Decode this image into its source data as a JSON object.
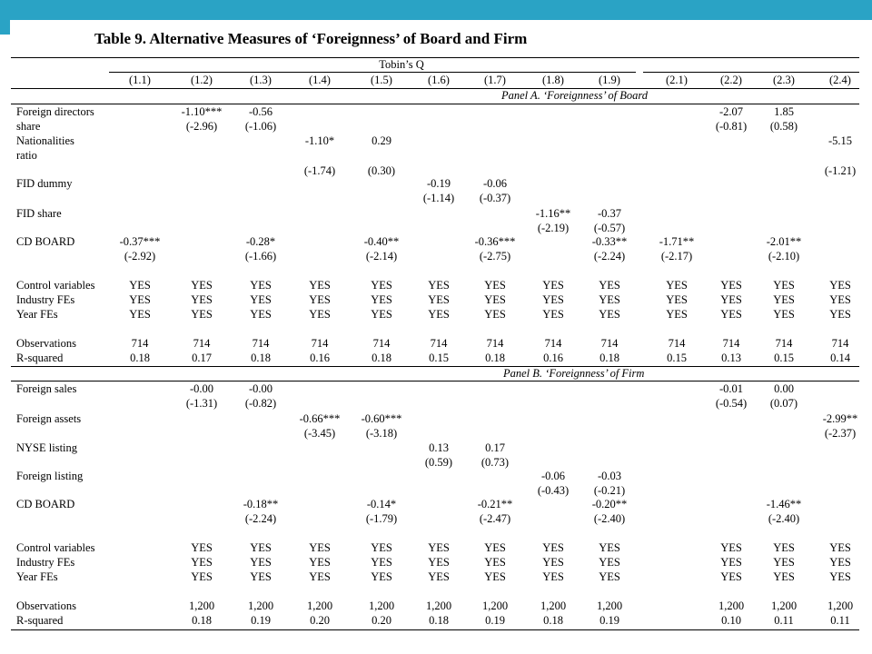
{
  "title": "Table 9. Alternative Measures of ‘Foreignness’ of Board and Firm",
  "dependent_var": "Tobin’s Q",
  "columns": [
    "(1.1)",
    "(1.2)",
    "(1.3)",
    "(1.4)",
    "(1.5)",
    "(1.6)",
    "(1.7)",
    "(1.8)",
    "(1.9)",
    "(2.1)",
    "(2.2)",
    "(2.3)",
    "(2.4)"
  ],
  "panels": [
    {
      "title": "Panel A. ‘Foreignness’ of Board",
      "vars": [
        {
          "label": [
            "Foreign directors",
            "share"
          ],
          "cells": [
            [
              "",
              ""
            ],
            [
              "-1.10***",
              "(-2.96)"
            ],
            [
              "-0.56",
              "(-1.06)"
            ],
            [
              "",
              ""
            ],
            [
              "",
              ""
            ],
            [
              "",
              ""
            ],
            [
              "",
              ""
            ],
            [
              "",
              ""
            ],
            [
              "",
              ""
            ],
            [
              "",
              ""
            ],
            [
              "-2.07",
              "(-0.81)"
            ],
            [
              "1.85",
              "(0.58)"
            ],
            [
              "",
              ""
            ]
          ]
        },
        {
          "label": [
            "Nationalities",
            "ratio"
          ],
          "cells": [
            [
              "",
              ""
            ],
            [
              "",
              ""
            ],
            [
              "",
              ""
            ],
            [
              "-1.10*",
              "(-1.74)"
            ],
            [
              "0.29",
              "(0.30)"
            ],
            [
              "",
              ""
            ],
            [
              "",
              ""
            ],
            [
              "",
              ""
            ],
            [
              "",
              ""
            ],
            [
              "",
              ""
            ],
            [
              "",
              ""
            ],
            [
              "",
              ""
            ],
            [
              "-5.15",
              "(-1.21)"
            ]
          ]
        },
        {
          "label": [
            "FID dummy"
          ],
          "cells": [
            [
              "",
              ""
            ],
            [
              "",
              ""
            ],
            [
              "",
              ""
            ],
            [
              "",
              ""
            ],
            [
              "",
              ""
            ],
            [
              "-0.19",
              "(-1.14)"
            ],
            [
              "-0.06",
              "(-0.37)"
            ],
            [
              "",
              ""
            ],
            [
              "",
              ""
            ],
            [
              "",
              ""
            ],
            [
              "",
              ""
            ],
            [
              "",
              ""
            ],
            [
              "",
              ""
            ]
          ]
        },
        {
          "label": [
            "FID share"
          ],
          "cells": [
            [
              "",
              ""
            ],
            [
              "",
              ""
            ],
            [
              "",
              ""
            ],
            [
              "",
              ""
            ],
            [
              "",
              ""
            ],
            [
              "",
              ""
            ],
            [
              "",
              ""
            ],
            [
              "-1.16**",
              "(-2.19)"
            ],
            [
              "-0.37",
              "(-0.57)"
            ],
            [
              "",
              ""
            ],
            [
              "",
              ""
            ],
            [
              "",
              ""
            ],
            [
              "",
              ""
            ]
          ]
        },
        {
          "label": [
            "CD BOARD"
          ],
          "cells": [
            [
              "-0.37***",
              "(-2.92)"
            ],
            [
              "",
              ""
            ],
            [
              "-0.28*",
              "(-1.66)"
            ],
            [
              "",
              ""
            ],
            [
              "-0.40**",
              "(-2.14)"
            ],
            [
              "",
              ""
            ],
            [
              "-0.36***",
              "(-2.75)"
            ],
            [
              "",
              ""
            ],
            [
              "-0.33**",
              "(-2.24)"
            ],
            [
              "-1.71**",
              "(-2.17)"
            ],
            [
              "",
              ""
            ],
            [
              "-2.01**",
              "(-2.10)"
            ],
            [
              "",
              ""
            ]
          ]
        }
      ],
      "controls": {
        "labels": [
          "Control variables",
          "Industry FEs",
          "Year FEs"
        ],
        "values": [
          "YES",
          "YES",
          "YES",
          "YES",
          "YES",
          "YES",
          "YES",
          "YES",
          "YES",
          "YES",
          "YES",
          "YES",
          "YES"
        ]
      },
      "stats": {
        "labels": [
          "Observations",
          "R-squared"
        ],
        "obs": [
          "714",
          "714",
          "714",
          "714",
          "714",
          "714",
          "714",
          "714",
          "714",
          "714",
          "714",
          "714",
          "714"
        ],
        "r2": [
          "0.18",
          "0.17",
          "0.18",
          "0.16",
          "0.18",
          "0.15",
          "0.18",
          "0.16",
          "0.18",
          "0.15",
          "0.13",
          "0.15",
          "0.14"
        ]
      }
    },
    {
      "title": "Panel B. ‘Foreignness’ of Firm",
      "vars": [
        {
          "label": [
            "Foreign sales"
          ],
          "cells": [
            [
              "",
              ""
            ],
            [
              "-0.00",
              "(-1.31)"
            ],
            [
              "-0.00",
              "(-0.82)"
            ],
            [
              "",
              ""
            ],
            [
              "",
              ""
            ],
            [
              "",
              ""
            ],
            [
              "",
              ""
            ],
            [
              "",
              ""
            ],
            [
              "",
              ""
            ],
            [
              "",
              ""
            ],
            [
              "-0.01",
              "(-0.54)"
            ],
            [
              "0.00",
              "(0.07)"
            ],
            [
              "",
              ""
            ]
          ]
        },
        {
          "label": [
            "Foreign assets"
          ],
          "cells": [
            [
              "",
              ""
            ],
            [
              "",
              ""
            ],
            [
              "",
              ""
            ],
            [
              "-0.66***",
              "(-3.45)"
            ],
            [
              "-0.60***",
              "(-3.18)"
            ],
            [
              "",
              ""
            ],
            [
              "",
              ""
            ],
            [
              "",
              ""
            ],
            [
              "",
              ""
            ],
            [
              "",
              ""
            ],
            [
              "",
              ""
            ],
            [
              "",
              ""
            ],
            [
              "-2.99**",
              "(-2.37)"
            ]
          ]
        },
        {
          "label": [
            "NYSE listing"
          ],
          "cells": [
            [
              "",
              ""
            ],
            [
              "",
              ""
            ],
            [
              "",
              ""
            ],
            [
              "",
              ""
            ],
            [
              "",
              ""
            ],
            [
              "0.13",
              "(0.59)"
            ],
            [
              "0.17",
              "(0.73)"
            ],
            [
              "",
              ""
            ],
            [
              "",
              ""
            ],
            [
              "",
              ""
            ],
            [
              "",
              ""
            ],
            [
              "",
              ""
            ],
            [
              "",
              ""
            ]
          ]
        },
        {
          "label": [
            "Foreign listing"
          ],
          "cells": [
            [
              "",
              ""
            ],
            [
              "",
              ""
            ],
            [
              "",
              ""
            ],
            [
              "",
              ""
            ],
            [
              "",
              ""
            ],
            [
              "",
              ""
            ],
            [
              "",
              ""
            ],
            [
              "-0.06",
              "(-0.43)"
            ],
            [
              "-0.03",
              "(-0.21)"
            ],
            [
              "",
              ""
            ],
            [
              "",
              ""
            ],
            [
              "",
              ""
            ],
            [
              "",
              ""
            ]
          ]
        },
        {
          "label": [
            "CD BOARD"
          ],
          "cells": [
            [
              "",
              ""
            ],
            [
              "",
              ""
            ],
            [
              "-0.18**",
              "(-2.24)"
            ],
            [
              "",
              ""
            ],
            [
              "-0.14*",
              "(-1.79)"
            ],
            [
              "",
              ""
            ],
            [
              "-0.21**",
              "(-2.47)"
            ],
            [
              "",
              ""
            ],
            [
              "-0.20**",
              "(-2.40)"
            ],
            [
              "",
              ""
            ],
            [
              "",
              ""
            ],
            [
              "-1.46**",
              "(-2.40)"
            ],
            [
              "",
              ""
            ]
          ]
        }
      ],
      "controls": {
        "labels": [
          "Control variables",
          "Industry FEs",
          "Year FEs"
        ],
        "values": [
          "",
          "YES",
          "YES",
          "YES",
          "YES",
          "YES",
          "YES",
          "YES",
          "YES",
          "",
          "YES",
          "YES",
          "YES"
        ]
      },
      "stats": {
        "labels": [
          "Observations",
          "R-squared"
        ],
        "obs": [
          "",
          "1,200",
          "1,200",
          "1,200",
          "1,200",
          "1,200",
          "1,200",
          "1,200",
          "1,200",
          "",
          "1,200",
          "1,200",
          "1,200"
        ],
        "r2": [
          "",
          "0.18",
          "0.19",
          "0.20",
          "0.20",
          "0.18",
          "0.19",
          "0.18",
          "0.19",
          "",
          "0.10",
          "0.11",
          "0.11"
        ]
      }
    }
  ]
}
